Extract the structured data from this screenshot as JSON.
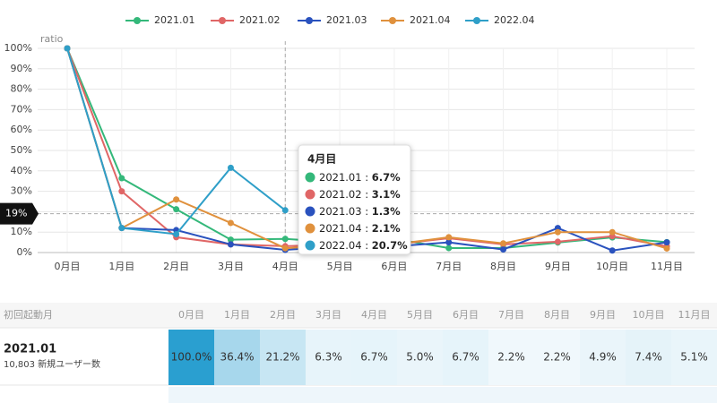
{
  "chart_data": {
    "type": "line",
    "y_label": "ratio",
    "categories": [
      "0月目",
      "1月目",
      "2月目",
      "3月目",
      "4月目",
      "5月目",
      "6月目",
      "7月目",
      "8月目",
      "9月目",
      "10月目",
      "11月目"
    ],
    "series": [
      {
        "name": "2021.01",
        "color": "#34b87a",
        "values": [
          100,
          36.4,
          21.2,
          6.3,
          6.7,
          5.0,
          6.7,
          2.2,
          2.2,
          4.9,
          7.4,
          5.1
        ]
      },
      {
        "name": "2021.02",
        "color": "#e06666",
        "values": [
          100,
          30,
          7.5,
          4,
          3.1,
          4,
          4,
          7,
          4,
          5.3,
          8,
          3
        ]
      },
      {
        "name": "2021.03",
        "color": "#2a52be",
        "values": [
          100,
          12,
          11,
          4,
          1.3,
          3,
          3,
          5,
          1.5,
          12,
          1,
          5
        ]
      },
      {
        "name": "2021.04",
        "color": "#e0913d",
        "values": [
          100,
          12,
          26,
          14.5,
          2.1,
          4,
          4,
          7.5,
          4.5,
          10,
          10,
          2
        ]
      },
      {
        "name": "2022.04",
        "color": "#2f9fc8",
        "values": [
          100,
          12,
          9,
          41.5,
          20.7,
          null,
          null,
          null,
          null,
          null,
          null,
          null
        ]
      }
    ],
    "ylim": [
      0,
      100
    ],
    "yticks": [
      {
        "value": 0,
        "label": "0%"
      },
      {
        "value": 10,
        "label": "10%"
      },
      {
        "value": 20,
        "label": "20%"
      },
      {
        "value": 30,
        "label": "30%"
      },
      {
        "value": 40,
        "label": "40%"
      },
      {
        "value": 50,
        "label": "50%"
      },
      {
        "value": 60,
        "label": "60%"
      },
      {
        "value": 70,
        "label": "70%"
      },
      {
        "value": 80,
        "label": "80%"
      },
      {
        "value": 90,
        "label": "90%"
      },
      {
        "value": 100,
        "label": "100%"
      }
    ],
    "grid": true,
    "crosshair_y": {
      "value": 19,
      "label": "19%"
    },
    "crosshair_x": 4
  },
  "tooltip": {
    "title": "4月目",
    "values": [
      "6.7%",
      "3.1%",
      "1.3%",
      "2.1%",
      "20.7%"
    ]
  },
  "table": {
    "header": "初回起動月",
    "rows": [
      {
        "name": "2021.01",
        "users": "10,803 新規ユーザー数",
        "values": [
          100,
          36.4,
          21.2,
          6.3,
          6.7,
          5.0,
          6.7,
          2.2,
          2.2,
          4.9,
          7.4,
          5.1
        ],
        "value_labels": [
          "100.0%",
          "36.4%",
          "21.2%",
          "6.3%",
          "6.7%",
          "5.0%",
          "6.7%",
          "2.2%",
          "2.2%",
          "4.9%",
          "7.4%",
          "5.1%"
        ]
      }
    ]
  }
}
